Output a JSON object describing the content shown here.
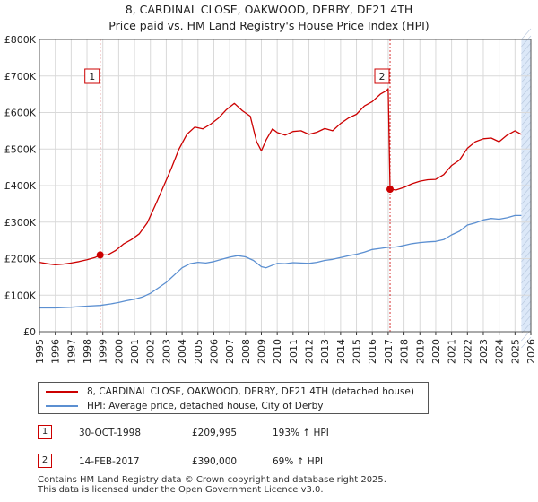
{
  "title_line1": "8, CARDINAL CLOSE, OAKWOOD, DERBY, DE21 4TH",
  "title_line2": "Price paid vs. HM Land Registry's House Price Index (HPI)",
  "colors": {
    "price": "#cc0000",
    "hpi": "#5b8fd1",
    "grid": "#d9d9d9",
    "shade": "#dce8f8",
    "marker_border": "#cc0000"
  },
  "chart_data": {
    "type": "line",
    "xlim": [
      1995,
      2026
    ],
    "ylim": [
      0,
      800000
    ],
    "x_ticks": [
      1995,
      1996,
      1997,
      1998,
      1999,
      2000,
      2001,
      2002,
      2003,
      2004,
      2005,
      2006,
      2007,
      2008,
      2009,
      2010,
      2011,
      2012,
      2013,
      2014,
      2015,
      2016,
      2017,
      2018,
      2019,
      2020,
      2021,
      2022,
      2023,
      2024,
      2025,
      2026
    ],
    "x_tick_labels": [
      "1995",
      "1996",
      "1997",
      "1998",
      "1999",
      "2000",
      "2001",
      "2002",
      "2003",
      "2004",
      "2005",
      "2006",
      "2007",
      "2008",
      "2009",
      "2010",
      "2011",
      "2012",
      "2013",
      "2014",
      "2015",
      "2016",
      "2017",
      "2018",
      "2019",
      "2020",
      "2021",
      "2022",
      "2023",
      "2024",
      "2025",
      "2026"
    ],
    "y_ticks": [
      0,
      100000,
      200000,
      300000,
      400000,
      500000,
      600000,
      700000,
      800000
    ],
    "y_tick_labels": [
      "£0",
      "£100K",
      "£200K",
      "£300K",
      "£400K",
      "£500K",
      "£600K",
      "£700K",
      "£800K"
    ],
    "series": [
      {
        "name": "8, CARDINAL CLOSE, OAKWOOD, DERBY, DE21 4TH (detached house)",
        "x": [
          1995.0,
          1995.5,
          1996.0,
          1996.5,
          1997.0,
          1997.5,
          1998.0,
          1998.5,
          1998.83,
          1999.3,
          1999.8,
          2000.3,
          2000.8,
          2001.3,
          2001.8,
          2002.3,
          2002.8,
          2003.3,
          2003.8,
          2004.3,
          2004.8,
          2005.3,
          2005.8,
          2006.3,
          2006.8,
          2007.3,
          2007.8,
          2008.3,
          2008.7,
          2009.0,
          2009.3,
          2009.7,
          2010.0,
          2010.5,
          2011.0,
          2011.5,
          2012.0,
          2012.5,
          2013.0,
          2013.5,
          2014.0,
          2014.5,
          2015.0,
          2015.5,
          2016.0,
          2016.5,
          2016.9,
          2017.0,
          2017.12,
          2017.5,
          2018.0,
          2018.5,
          2019.0,
          2019.5,
          2020.0,
          2020.5,
          2021.0,
          2021.5,
          2022.0,
          2022.5,
          2023.0,
          2023.5,
          2024.0,
          2024.5,
          2025.0,
          2025.4
        ],
        "values": [
          190000,
          186000,
          183000,
          185000,
          188000,
          192000,
          197000,
          203000,
          209995,
          210000,
          222000,
          240000,
          252000,
          268000,
          298000,
          345000,
          395000,
          445000,
          500000,
          540000,
          560000,
          555000,
          568000,
          585000,
          608000,
          625000,
          605000,
          590000,
          520000,
          495000,
          525000,
          555000,
          545000,
          538000,
          548000,
          550000,
          540000,
          546000,
          556000,
          550000,
          570000,
          585000,
          595000,
          618000,
          630000,
          650000,
          660000,
          665000,
          390000,
          388000,
          395000,
          405000,
          412000,
          416000,
          417000,
          430000,
          455000,
          470000,
          502000,
          520000,
          528000,
          530000,
          520000,
          538000,
          550000,
          540000
        ]
      },
      {
        "name": "HPI: Average price, detached house, City of Derby",
        "x": [
          1995.0,
          1996.0,
          1997.0,
          1998.0,
          1998.83,
          1999.5,
          2000.0,
          2000.5,
          2001.0,
          2001.5,
          2002.0,
          2002.5,
          2003.0,
          2003.5,
          2004.0,
          2004.5,
          2005.0,
          2005.5,
          2006.0,
          2006.5,
          2007.0,
          2007.5,
          2008.0,
          2008.5,
          2009.0,
          2009.3,
          2009.7,
          2010.0,
          2010.5,
          2011.0,
          2011.5,
          2012.0,
          2012.5,
          2013.0,
          2013.5,
          2014.0,
          2014.5,
          2015.0,
          2015.5,
          2016.0,
          2016.5,
          2017.0,
          2017.5,
          2018.0,
          2018.5,
          2019.0,
          2019.5,
          2020.0,
          2020.5,
          2021.0,
          2021.5,
          2022.0,
          2022.5,
          2023.0,
          2023.5,
          2024.0,
          2024.5,
          2025.0,
          2025.4
        ],
        "values": [
          65000,
          65000,
          67000,
          70000,
          72000,
          76000,
          80000,
          85000,
          89000,
          95000,
          105000,
          120000,
          135000,
          155000,
          175000,
          186000,
          190000,
          188000,
          192000,
          198000,
          204000,
          208000,
          205000,
          195000,
          178000,
          175000,
          182000,
          187000,
          186000,
          189000,
          188000,
          187000,
          190000,
          195000,
          198000,
          203000,
          208000,
          212000,
          218000,
          225000,
          228000,
          231000,
          232000,
          236000,
          241000,
          244000,
          246000,
          247000,
          252000,
          265000,
          275000,
          292000,
          298000,
          306000,
          310000,
          308000,
          312000,
          318000,
          318000
        ]
      }
    ],
    "sales": [
      {
        "marker": "1",
        "year": 1998.83,
        "value": 209995
      },
      {
        "marker": "2",
        "year": 2017.12,
        "value": 390000
      }
    ],
    "shaded_region": [
      2025.4,
      2026
    ],
    "legend_placement": "below"
  },
  "legend": {
    "price_label": "8, CARDINAL CLOSE, OAKWOOD, DERBY, DE21 4TH (detached house)",
    "hpi_label": "HPI: Average price, detached house, City of Derby"
  },
  "sales_table": [
    {
      "marker": "1",
      "date": "30-OCT-1998",
      "price": "£209,995",
      "hpi_change": "193% ↑ HPI"
    },
    {
      "marker": "2",
      "date": "14-FEB-2017",
      "price": "£390,000",
      "hpi_change": "69% ↑ HPI"
    }
  ],
  "footer_line1": "Contains HM Land Registry data © Crown copyright and database right 2025.",
  "footer_line2": "This data is licensed under the Open Government Licence v3.0."
}
